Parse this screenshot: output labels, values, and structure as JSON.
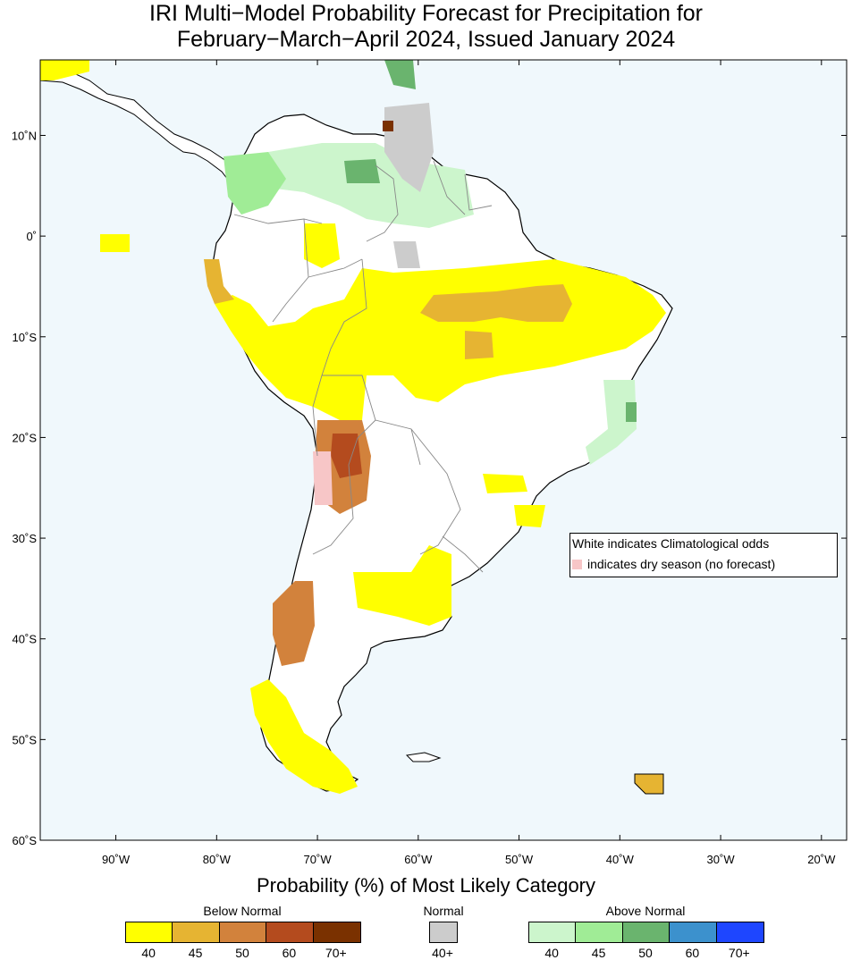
{
  "title": {
    "line1": "IRI Multi−Model Probability Forecast for Precipitation for",
    "line2": "February−March−April 2024, Issued January 2024"
  },
  "axes": {
    "lon_labels": [
      "90˚W",
      "80˚W",
      "70˚W",
      "60˚W",
      "50˚W",
      "40˚W",
      "30˚W",
      "20˚W"
    ],
    "lon_values": [
      -90,
      -80,
      -70,
      -60,
      -50,
      -40,
      -30,
      -20
    ],
    "lat_labels": [
      "10˚N",
      "0˚",
      "10˚S",
      "20˚S",
      "30˚S",
      "40˚S",
      "50˚S",
      "60˚S"
    ],
    "lat_values": [
      10,
      0,
      -10,
      -20,
      -30,
      -40,
      -50,
      -60
    ],
    "lon_range": [
      -97.5,
      -17.5
    ],
    "lat_range": [
      -60,
      17.5
    ]
  },
  "note": {
    "line1": "White indicates Climatological odds",
    "line2": "indicates dry season (no forecast)"
  },
  "colorbar": {
    "title": "Probability (%) of Most Likely Category",
    "below": {
      "label": "Below Normal",
      "colors": [
        "#ffff00",
        "#e6b432",
        "#d2823c",
        "#b44b1e",
        "#7a3100"
      ],
      "ticks": [
        "40",
        "45",
        "50",
        "60",
        "70+"
      ]
    },
    "normal": {
      "label": "Normal",
      "colors": [
        "#cccccc"
      ],
      "ticks": [
        "40+"
      ]
    },
    "above": {
      "label": "Above Normal",
      "colors": [
        "#ccf5cc",
        "#a0ec96",
        "#6ab46e",
        "#3c91cd",
        "#1e46ff"
      ],
      "ticks": [
        "40",
        "45",
        "50",
        "60",
        "70+"
      ]
    }
  },
  "colors": {
    "ocean": "#f0f8fc",
    "land": "#ffffff",
    "dry_season": "#f7c6c7"
  }
}
